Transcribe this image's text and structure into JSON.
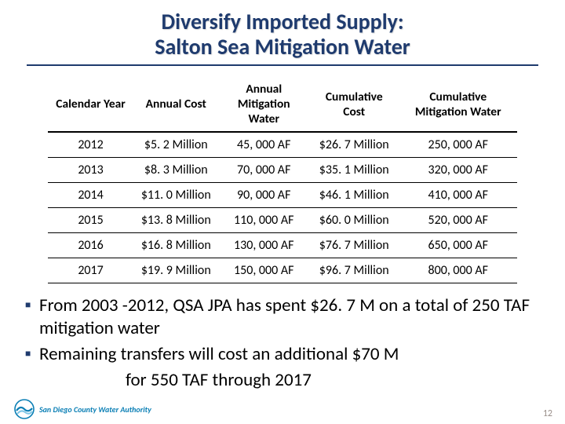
{
  "title_line1": "Diversify Imported Supply:",
  "title_line2": "Salton Sea Mitigation Water",
  "table": {
    "columns": [
      "Calendar Year",
      "Annual Cost",
      "Annual Mitigation Water",
      "Cumulative Cost",
      "Cumulative Mitigation Water"
    ],
    "rows": [
      [
        "2012",
        "$5. 2 Million",
        "45, 000 AF",
        "$26. 7 Million",
        "250, 000 AF"
      ],
      [
        "2013",
        "$8. 3 Million",
        "70, 000 AF",
        "$35. 1 Million",
        "320, 000 AF"
      ],
      [
        "2014",
        "$11. 0 Million",
        "90, 000 AF",
        "$46. 1 Million",
        "410, 000 AF"
      ],
      [
        "2015",
        "$13. 8 Million",
        "110, 000 AF",
        "$60. 0 Million",
        "520, 000 AF"
      ],
      [
        "2016",
        "$16. 8 Million",
        "130, 000 AF",
        "$76. 7 Million",
        "650, 000 AF"
      ],
      [
        "2017",
        "$19. 9 Million",
        "150, 000 AF",
        "$96. 7 Million",
        "800, 000 AF"
      ]
    ],
    "header_border_color": "#000000",
    "row_border_color": "#000000",
    "font_size": 16
  },
  "bullets": [
    "From 2003 -2012, QSA JPA has spent $26. 7 M on a total of 250 TAF mitigation water",
    "Remaining transfers will cost an additional $70 M"
  ],
  "bullet_continuation": "for 550 TAF through 2017",
  "page_number": "12",
  "logo_text": "San Diego County Water Authority",
  "colors": {
    "title": "#1f3b6e",
    "bullet_marker": "#1f3b6e",
    "logo_text": "#0b7fb5",
    "pagenum": "#9a8f8a",
    "background": "#ffffff"
  }
}
